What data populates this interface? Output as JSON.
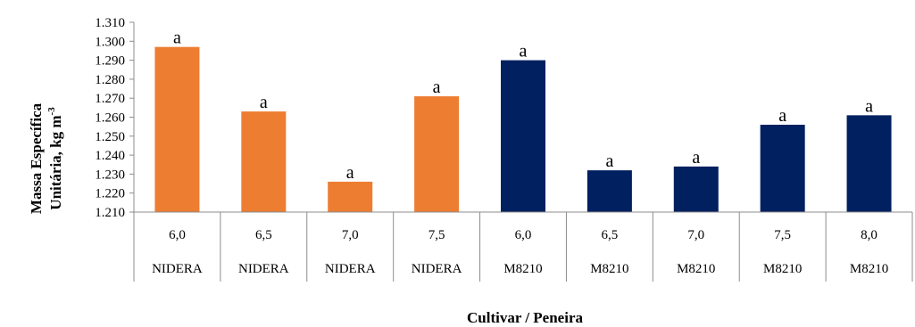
{
  "chart_data": {
    "type": "bar",
    "title": "",
    "xlabel": "Cultivar / Peneira",
    "ylabel_line1": "Massa Específica",
    "ylabel_line2_base": "Unitária, kg m",
    "ylabel_line2_sup": "-3",
    "ylim": [
      1.21,
      1.31
    ],
    "yticks": [
      "1.210",
      "1.220",
      "1.230",
      "1.240",
      "1.250",
      "1.260",
      "1.270",
      "1.280",
      "1.290",
      "1.300",
      "1.310"
    ],
    "categories": [
      {
        "peneira": "6,0",
        "cultivar": "NIDERA"
      },
      {
        "peneira": "6,5",
        "cultivar": "NIDERA"
      },
      {
        "peneira": "7,0",
        "cultivar": "NIDERA"
      },
      {
        "peneira": "7,5",
        "cultivar": "NIDERA"
      },
      {
        "peneira": "6,0",
        "cultivar": "M8210"
      },
      {
        "peneira": "6,5",
        "cultivar": "M8210"
      },
      {
        "peneira": "7,0",
        "cultivar": "M8210"
      },
      {
        "peneira": "7,5",
        "cultivar": "M8210"
      },
      {
        "peneira": "8,0",
        "cultivar": "M8210"
      }
    ],
    "values": [
      1.297,
      1.263,
      1.226,
      1.271,
      1.29,
      1.232,
      1.234,
      1.256,
      1.261
    ],
    "data_labels": [
      "a",
      "a",
      "a",
      "a",
      "a",
      "a",
      "a",
      "a",
      "a"
    ],
    "colors": [
      "#ED7D31",
      "#ED7D31",
      "#ED7D31",
      "#ED7D31",
      "#002060",
      "#002060",
      "#002060",
      "#002060",
      "#002060"
    ],
    "grid": false,
    "legend": "none"
  }
}
